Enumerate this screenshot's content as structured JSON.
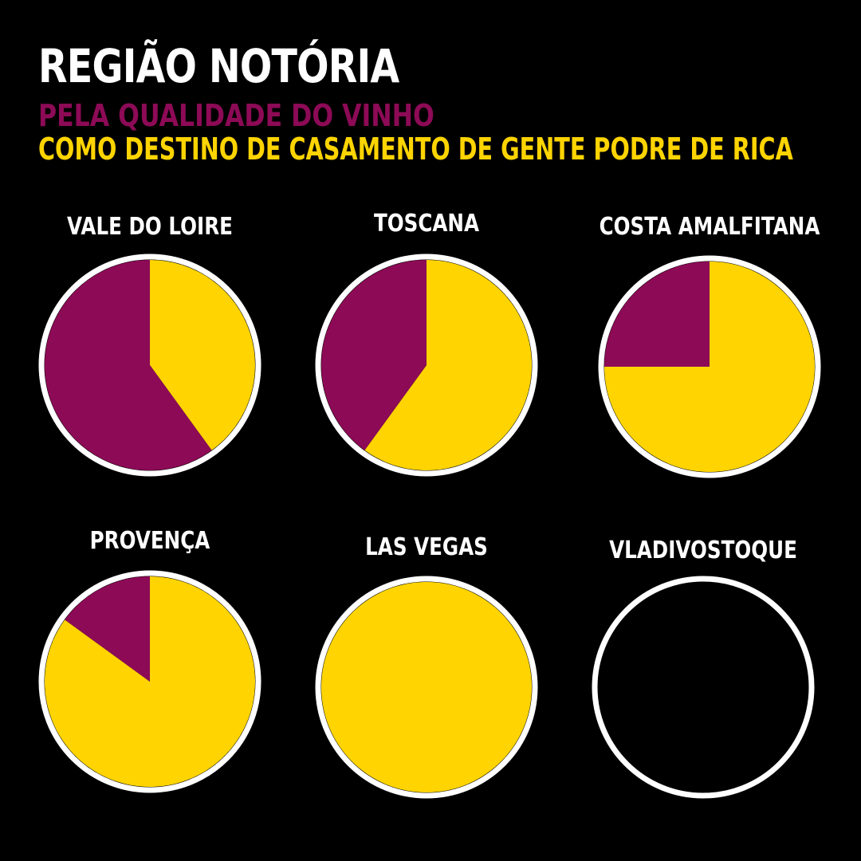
{
  "title": "REGIÃO NOTÓRIA",
  "colors": {
    "background": "#000000",
    "wine": "#8d0a56",
    "wedding": "#ffd400",
    "outline": "#ffffff"
  },
  "chart_data": {
    "type": "pie",
    "title": "REGIÃO NOTÓRIA",
    "legend": [
      {
        "series": "wine",
        "label": "PELA QUALIDADE DO VINHO"
      },
      {
        "series": "wedding",
        "label": "COMO DESTINO DE CASAMENTO DE GENTE PODRE DE RICA"
      }
    ],
    "pies": [
      {
        "label": "VALE DO LOIRE",
        "wine": 60,
        "wedding": 40
      },
      {
        "label": "TOSCANA",
        "wine": 40,
        "wedding": 60
      },
      {
        "label": "COSTA AMALFITANA",
        "wine": 25,
        "wedding": 75
      },
      {
        "label": "PROVENÇA",
        "wine": 15,
        "wedding": 85
      },
      {
        "label": "LAS VEGAS",
        "wine": 0,
        "wedding": 100
      },
      {
        "label": "VLADIVOSTOQUE",
        "wine": 0,
        "wedding": 0
      }
    ]
  }
}
